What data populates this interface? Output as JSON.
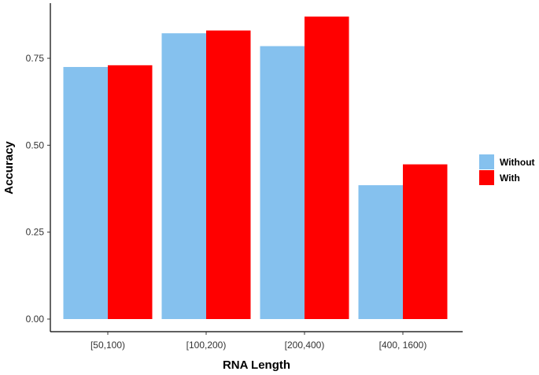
{
  "chart_data": {
    "type": "bar",
    "title": "",
    "xlabel": "RNA Length",
    "ylabel": "Accuracy",
    "categories": [
      "[50,100)",
      "[100,200)",
      "[200,400)",
      "[400, 1600)"
    ],
    "series": [
      {
        "name": "Without",
        "color": "#85C1EE",
        "values": [
          0.725,
          0.822,
          0.785,
          0.385
        ]
      },
      {
        "name": "With",
        "color": "#FF0000",
        "values": [
          0.73,
          0.83,
          0.87,
          0.445
        ]
      }
    ],
    "ylim": [
      0,
      0.9
    ],
    "yticks": [
      0.0,
      0.25,
      0.5,
      0.75
    ],
    "ytick_labels": [
      "0.00",
      "0.25",
      "0.50",
      "0.75"
    ],
    "grid": false,
    "legend_position": "right"
  }
}
